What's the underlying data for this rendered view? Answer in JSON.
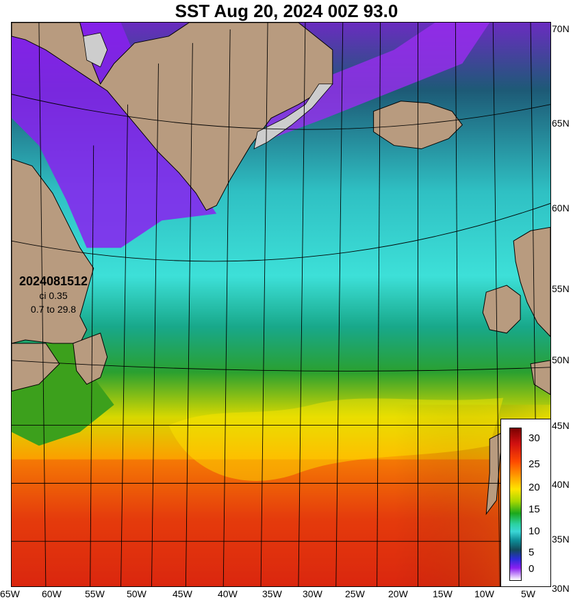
{
  "title": "SST Aug 20, 2024 00Z 93.0",
  "run_info": {
    "run_id": "2024081512",
    "ci": "ci 0.35",
    "range": "0.7 to 29.8"
  },
  "lat_labels": [
    "70N",
    "65N",
    "60N",
    "55N",
    "50N",
    "45N",
    "40N",
    "35N",
    "30N"
  ],
  "lon_labels": [
    "65W",
    "60W",
    "55W",
    "50W",
    "45W",
    "40W",
    "35W",
    "30W",
    "25W",
    "20W",
    "15W",
    "10W",
    "5W"
  ],
  "colorbar": {
    "ticks": [
      "30",
      "25",
      "20",
      "15",
      "10",
      "5",
      "0"
    ]
  },
  "colors": {
    "land": "#b89b7f",
    "ice": "#cdcdcd",
    "cold": "#8a20f0",
    "warm": "#d61a0f"
  }
}
